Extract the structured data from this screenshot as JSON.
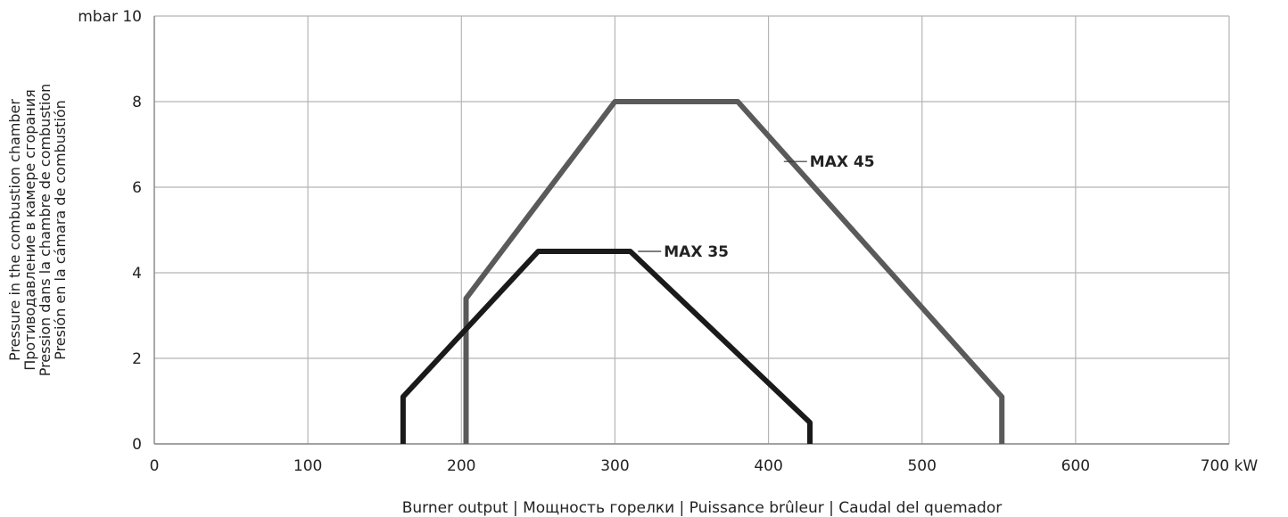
{
  "chart_data": {
    "type": "line",
    "xlim": [
      0,
      700
    ],
    "ylim": [
      0,
      10
    ],
    "grid": true,
    "x_ticks": [
      0,
      100,
      200,
      300,
      400,
      500,
      600,
      700
    ],
    "y_ticks": [
      0,
      2,
      4,
      6,
      8,
      10
    ],
    "x_tick_labels": [
      "0",
      "100",
      "200",
      "300",
      "400",
      "500",
      "600",
      "700 kW"
    ],
    "y_tick_labels": [
      "0",
      "2",
      "4",
      "6",
      "8",
      "mbar 10"
    ],
    "xlabel": "Burner output | Мощность горелки | Puissance brûleur | Caudal del quemador",
    "ylabel": [
      "Pressure in the combustion chamber",
      "Противодавление в камере сгорания",
      "Pression dans la chambre de combustion",
      "Presión en la cámara de combustión"
    ],
    "series": [
      {
        "name": "MAX 35",
        "color": "#1a1a1a",
        "x": [
          162,
          162,
          250,
          310,
          427,
          427
        ],
        "y": [
          0,
          1.1,
          4.5,
          4.5,
          0.5,
          0
        ]
      },
      {
        "name": "MAX 45",
        "color": "#5a5a5a",
        "x": [
          203,
          203,
          300,
          380,
          552,
          552
        ],
        "y": [
          0,
          3.4,
          8.0,
          8.0,
          1.1,
          0
        ]
      }
    ],
    "annotations": [
      {
        "series": "MAX 35",
        "text": "MAX 35",
        "at": [
          315,
          4.5
        ]
      },
      {
        "series": "MAX 45",
        "text": "MAX 45",
        "at": [
          410,
          6.6
        ]
      }
    ]
  }
}
